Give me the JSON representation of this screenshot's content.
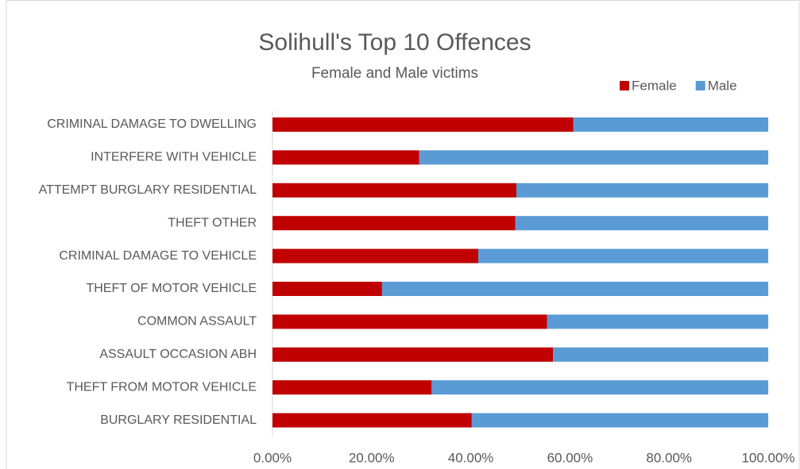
{
  "chart_data": {
    "type": "stacked-barh",
    "title": "Solihull's Top 10 Offences",
    "subtitle": "Female and Male victims",
    "categories": [
      "CRIMINAL DAMAGE TO DWELLING",
      "INTERFERE WITH VEHICLE",
      "ATTEMPT BURGLARY RESIDENTIAL",
      "THEFT OTHER",
      "CRIMINAL DAMAGE TO VEHICLE",
      "THEFT OF MOTOR VEHICLE",
      "COMMON ASSAULT",
      "ASSAULT OCCASION ABH",
      "THEFT FROM MOTOR VEHICLE",
      "BURGLARY RESIDENTIAL"
    ],
    "series": [
      {
        "name": "Female",
        "color": "#c00000",
        "values": [
          60.7,
          29.6,
          49.2,
          49.0,
          41.5,
          22.1,
          55.4,
          56.6,
          32.1,
          40.2
        ]
      },
      {
        "name": "Male",
        "color": "#5b9bd5",
        "values": [
          39.3,
          70.4,
          50.8,
          51.0,
          58.5,
          77.9,
          44.6,
          43.4,
          67.9,
          59.8
        ]
      }
    ],
    "xlim": [
      0,
      100
    ],
    "xticks": [
      {
        "value": 0,
        "label": "0.00%"
      },
      {
        "value": 20,
        "label": "20.00%"
      },
      {
        "value": 40,
        "label": "40.00%"
      },
      {
        "value": 60,
        "label": "60.00%"
      },
      {
        "value": 80,
        "label": "80.00%"
      },
      {
        "value": 100,
        "label": "100.00%"
      }
    ],
    "legend": "top-right"
  }
}
